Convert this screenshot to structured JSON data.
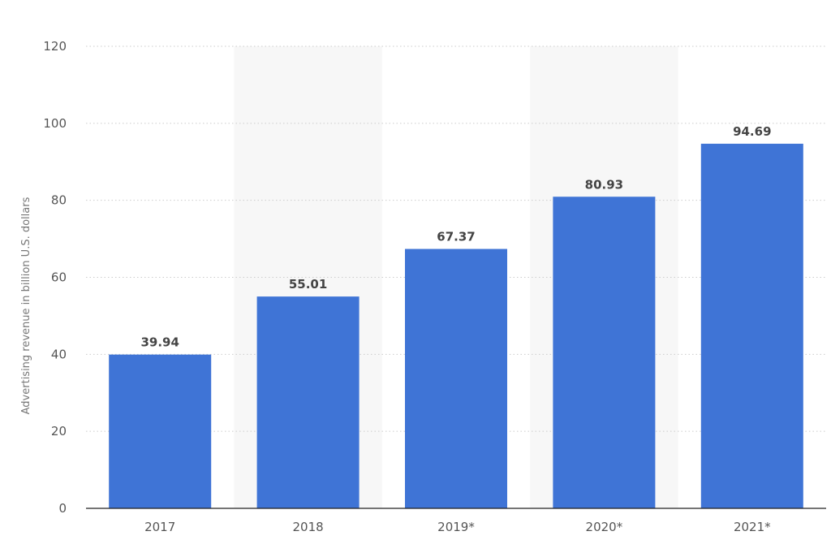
{
  "chart_data": {
    "type": "bar",
    "categories": [
      "2017",
      "2018",
      "2019*",
      "2020*",
      "2021*"
    ],
    "values": [
      39.94,
      55.01,
      67.37,
      80.93,
      94.69
    ],
    "data_labels": [
      "39.94",
      "55.01",
      "67.37",
      "80.93",
      "94.69"
    ],
    "title": "",
    "xlabel": "",
    "ylabel": "Advertising revenue in billion U.S. dollars",
    "ylim": [
      0,
      120
    ],
    "yticks": [
      0,
      20,
      40,
      60,
      80,
      100,
      120
    ],
    "ytick_labels": [
      "0",
      "20",
      "40",
      "60",
      "80",
      "100",
      "120"
    ],
    "grid": true,
    "grid_style": "dotted",
    "alternating_column_shading": true,
    "legend": "none",
    "colors": {
      "bar": "#3f74d6",
      "grid": "#cccccc",
      "axis": "#222222",
      "band": "#f7f7f7"
    }
  }
}
